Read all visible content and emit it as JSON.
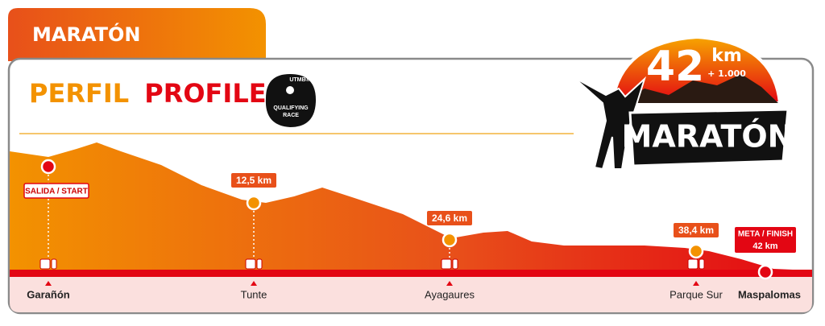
{
  "tab": "MARATÓN",
  "title": {
    "first": "PERFIL",
    "second": "PROFILE"
  },
  "badge": {
    "top": "UTMB®",
    "line1": "QUALIFYING",
    "line2": "RACE"
  },
  "logo": {
    "number": "42",
    "unit": "km",
    "elevation": "+ 1.000",
    "name": "MARATÓN"
  },
  "checkpoints": [
    {
      "label": "SALIDA / START",
      "place": "Garañón"
    },
    {
      "label": "12,5 km",
      "place": "Tunte"
    },
    {
      "label": "24,6 km",
      "place": "Ayagaures"
    },
    {
      "label": "38,4 km",
      "place": "Parque Sur"
    },
    {
      "label": "META / FINISH",
      "sublabel": "42 km",
      "place": "Maspalomas"
    }
  ]
}
